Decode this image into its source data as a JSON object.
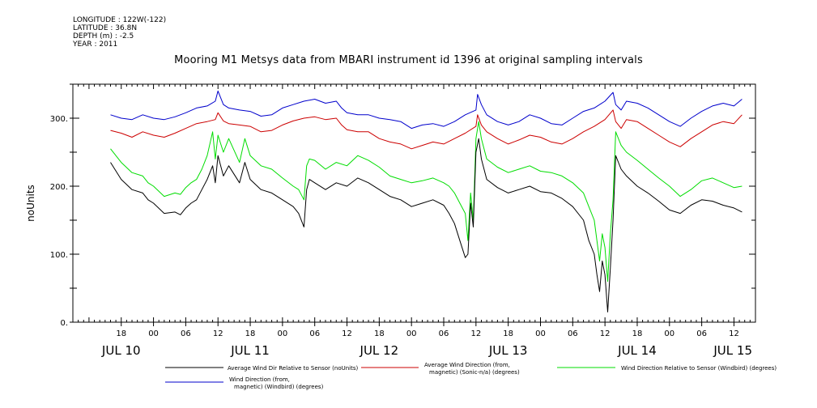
{
  "header": {
    "longitude": "LONGITUDE : 122W(-122)",
    "latitude": "LATITUDE : 36.8N",
    "depth": "DEPTH (m) : -2.5",
    "year": "YEAR : 2011"
  },
  "colors": {
    "black": "#000000",
    "red": "#cc0000",
    "green": "#00dd00",
    "blue": "#0000cc"
  },
  "chart_data": {
    "type": "line",
    "title": "Mooring M1 Metsys data from MBARI instrument id 1396 at original sampling intervals",
    "ylabel": "noUnits",
    "ylim": [
      0,
      350
    ],
    "y_ticks": [
      0,
      100,
      200,
      300
    ],
    "y_tick_labels": [
      "0.",
      "100.",
      "200.",
      "300."
    ],
    "x_unit": "hours since JUL 10 00:00 (2011)",
    "xlim": [
      9,
      136
    ],
    "x_ticks": [
      {
        "x": 18,
        "label": "18"
      },
      {
        "x": 24,
        "label": "00"
      },
      {
        "x": 30,
        "label": "06"
      },
      {
        "x": 36,
        "label": "12"
      },
      {
        "x": 42,
        "label": "18"
      },
      {
        "x": 48,
        "label": "00"
      },
      {
        "x": 54,
        "label": "06"
      },
      {
        "x": 60,
        "label": "12"
      },
      {
        "x": 66,
        "label": "18"
      },
      {
        "x": 72,
        "label": "00"
      },
      {
        "x": 78,
        "label": "06"
      },
      {
        "x": 84,
        "label": "12"
      },
      {
        "x": 90,
        "label": "18"
      },
      {
        "x": 96,
        "label": "00"
      },
      {
        "x": 102,
        "label": "06"
      },
      {
        "x": 108,
        "label": "12"
      },
      {
        "x": 114,
        "label": "18"
      },
      {
        "x": 120,
        "label": "00"
      },
      {
        "x": 126,
        "label": "06"
      },
      {
        "x": 132,
        "label": "12"
      }
    ],
    "day_labels": [
      {
        "x": 18,
        "label": "JUL 10"
      },
      {
        "x": 42,
        "label": "JUL 11"
      },
      {
        "x": 66,
        "label": "JUL 12"
      },
      {
        "x": 90,
        "label": "JUL 13"
      },
      {
        "x": 114,
        "label": "JUL 14"
      },
      {
        "x": 138,
        "label": "JUL 15"
      }
    ],
    "legend": [
      {
        "name": "Average Wind Dir Relative to Sensor (noUnits)",
        "color": "#000000"
      },
      {
        "name_line1": "Average Wind Direction (from,",
        "name_line2": "magnetic) (Sonic-n/a) (degrees)",
        "color": "#cc0000"
      },
      {
        "name": "Wind Direction Relative to Sensor (Windbird) (degrees)",
        "color": "#00dd00"
      },
      {
        "name_line1": "Wind Direction (from,",
        "name_line2": "magnetic) (Windbird) (degrees)",
        "color": "#0000cc"
      }
    ],
    "series": [
      {
        "color": "#0000cc",
        "x": [
          16,
          18,
          20,
          22,
          24,
          26,
          28,
          30,
          32,
          34,
          35.5,
          36,
          37,
          38,
          40,
          42,
          44,
          46,
          48,
          50,
          52,
          54,
          56,
          58,
          59,
          60,
          62,
          64,
          66,
          68,
          70,
          72,
          74,
          76,
          78,
          80,
          82,
          84,
          84.3,
          85,
          86,
          88,
          90,
          92,
          94,
          96,
          98,
          100,
          102,
          104,
          106,
          108,
          109.5,
          110,
          111,
          112,
          114,
          116,
          118,
          120,
          122,
          124,
          126,
          128,
          130,
          132,
          133.5
        ],
        "y": [
          305,
          300,
          298,
          305,
          300,
          298,
          302,
          308,
          315,
          318,
          325,
          340,
          320,
          315,
          312,
          310,
          303,
          305,
          315,
          320,
          325,
          328,
          322,
          325,
          315,
          308,
          305,
          305,
          300,
          298,
          295,
          285,
          290,
          292,
          288,
          295,
          305,
          312,
          335,
          320,
          305,
          295,
          290,
          295,
          305,
          300,
          292,
          290,
          300,
          310,
          315,
          325,
          338,
          320,
          312,
          325,
          322,
          315,
          305,
          295,
          288,
          300,
          310,
          318,
          322,
          318,
          328
        ]
      },
      {
        "color": "#cc0000",
        "x": [
          16,
          18,
          20,
          22,
          24,
          26,
          28,
          30,
          32,
          34,
          35.5,
          36,
          37,
          38,
          40,
          42,
          44,
          46,
          48,
          50,
          52,
          54,
          56,
          58,
          59,
          60,
          62,
          64,
          66,
          68,
          70,
          72,
          74,
          76,
          78,
          80,
          82,
          84,
          84.3,
          85,
          86,
          88,
          90,
          92,
          94,
          96,
          98,
          100,
          102,
          104,
          106,
          108,
          109.5,
          110,
          111,
          112,
          114,
          116,
          118,
          120,
          122,
          124,
          126,
          128,
          130,
          132,
          133.5
        ],
        "y": [
          282,
          278,
          272,
          280,
          275,
          272,
          278,
          285,
          292,
          295,
          298,
          308,
          296,
          292,
          290,
          288,
          280,
          282,
          290,
          296,
          300,
          302,
          298,
          300,
          290,
          283,
          280,
          280,
          270,
          265,
          262,
          255,
          260,
          265,
          262,
          270,
          278,
          288,
          305,
          290,
          280,
          270,
          262,
          268,
          275,
          272,
          265,
          262,
          270,
          280,
          288,
          298,
          312,
          295,
          285,
          298,
          295,
          285,
          275,
          265,
          258,
          270,
          280,
          290,
          295,
          292,
          305
        ]
      },
      {
        "color": "#00dd00",
        "x": [
          16,
          18,
          20,
          22,
          23,
          24,
          26,
          28,
          29,
          30,
          31,
          32,
          33,
          34,
          35,
          35.5,
          36,
          37,
          38,
          40,
          41,
          42,
          44,
          46,
          48,
          50,
          51,
          52,
          52.5,
          53,
          54,
          56,
          58,
          60,
          62,
          64,
          66,
          68,
          70,
          72,
          74,
          76,
          78,
          79,
          80,
          81,
          82,
          82.5,
          83,
          83.5,
          84,
          84.5,
          85,
          86,
          88,
          90,
          92,
          94,
          96,
          98,
          100,
          102,
          104,
          105,
          106,
          106.5,
          107,
          107.5,
          108,
          108.5,
          109,
          109.5,
          110,
          111,
          112,
          114,
          116,
          118,
          120,
          122,
          124,
          126,
          128,
          130,
          132,
          133.5
        ],
        "y": [
          255,
          235,
          220,
          215,
          205,
          200,
          185,
          190,
          188,
          198,
          205,
          210,
          225,
          245,
          280,
          240,
          275,
          250,
          270,
          235,
          270,
          245,
          230,
          225,
          212,
          200,
          195,
          180,
          230,
          240,
          238,
          225,
          235,
          230,
          245,
          238,
          228,
          215,
          210,
          205,
          208,
          212,
          205,
          200,
          190,
          175,
          160,
          120,
          190,
          150,
          270,
          295,
          270,
          240,
          228,
          220,
          225,
          230,
          222,
          220,
          215,
          205,
          190,
          170,
          150,
          120,
          90,
          130,
          110,
          60,
          130,
          180,
          280,
          260,
          250,
          238,
          225,
          212,
          200,
          185,
          195,
          208,
          212,
          205,
          198,
          200
        ]
      },
      {
        "color": "#000000",
        "x": [
          16,
          18,
          20,
          22,
          23,
          24,
          26,
          28,
          29,
          30,
          31,
          32,
          33,
          34,
          35,
          35.5,
          36,
          37,
          38,
          40,
          41,
          42,
          44,
          46,
          48,
          50,
          51,
          52,
          52.5,
          53,
          54,
          56,
          58,
          60,
          62,
          64,
          66,
          68,
          70,
          72,
          74,
          76,
          78,
          79,
          80,
          81,
          82,
          82.5,
          83,
          83.5,
          84,
          84.5,
          85,
          86,
          88,
          90,
          92,
          94,
          96,
          98,
          100,
          102,
          104,
          105,
          106,
          106.5,
          107,
          107.5,
          108,
          108.5,
          109,
          109.5,
          110,
          111,
          112,
          114,
          116,
          118,
          120,
          122,
          124,
          126,
          128,
          130,
          132,
          133.5
        ],
        "y": [
          235,
          210,
          195,
          190,
          180,
          175,
          160,
          162,
          158,
          168,
          175,
          180,
          195,
          210,
          230,
          205,
          245,
          215,
          230,
          205,
          235,
          210,
          195,
          190,
          180,
          170,
          160,
          140,
          195,
          210,
          205,
          195,
          205,
          200,
          212,
          205,
          195,
          185,
          180,
          170,
          175,
          180,
          172,
          160,
          145,
          120,
          95,
          100,
          175,
          140,
          250,
          270,
          240,
          210,
          198,
          190,
          195,
          200,
          192,
          190,
          182,
          170,
          150,
          120,
          100,
          70,
          45,
          90,
          70,
          15,
          80,
          150,
          245,
          225,
          215,
          200,
          190,
          178,
          165,
          160,
          172,
          180,
          178,
          172,
          168,
          162
        ]
      }
    ]
  }
}
